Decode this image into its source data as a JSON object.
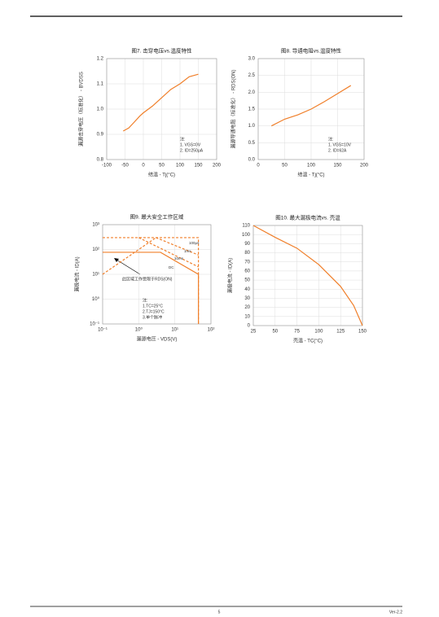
{
  "chart_data": [
    {
      "type": "line",
      "title": "图7. 击穿电压vs.温度特性",
      "xlabel": "结温 - Tj(°C)",
      "ylabel": "漏源击穿电压（标准化） - BVDSS",
      "xlim": [
        -100,
        200
      ],
      "xticks": [
        -100,
        -50,
        0,
        50,
        100,
        150,
        200
      ],
      "ylim": [
        0.8,
        1.2
      ],
      "yticks": [
        0.8,
        0.9,
        {
          "value": 1,
          "label": "1.0"
        },
        1.1,
        1.2
      ],
      "grid": true,
      "series": [
        {
          "color": "#f07f2a",
          "x": [
            -55,
            -40,
            -25,
            -10,
            0,
            25,
            50,
            75,
            100,
            125,
            150
          ],
          "values": [
            0.913,
            0.925,
            0.948,
            0.972,
            0.985,
            1.012,
            1.045,
            1.078,
            1.1,
            1.128,
            1.138
          ]
        }
      ],
      "annotations": [
        "注:",
        "1. VGS=0V",
        "2. ID=250μA"
      ]
    },
    {
      "type": "line",
      "title": "图8. 导通电阻vs.温度特性",
      "xlabel": "结温 - Tj(°C)",
      "ylabel": "漏源导通电阻（标准化） - RDS(ON)",
      "xlim": [
        0,
        200
      ],
      "xticks": [
        0,
        50,
        100,
        150,
        200
      ],
      "ylim": [
        0,
        3
      ],
      "yticks": [
        {
          "value": 0,
          "label": "0.0"
        },
        0.5,
        {
          "value": 1,
          "label": "1.0"
        },
        1.5,
        {
          "value": 2,
          "label": "2.0"
        },
        2.5,
        {
          "value": 3,
          "label": "3.0"
        }
      ],
      "grid": true,
      "series": [
        {
          "color": "#f07f2a",
          "x": [
            25,
            50,
            75,
            100,
            125,
            150,
            175
          ],
          "values": [
            1.0,
            1.2,
            1.33,
            1.5,
            1.72,
            1.96,
            2.2
          ]
        }
      ],
      "annotations": [
        "注:",
        "1. VGS=10V",
        "2. ID=62A"
      ]
    },
    {
      "type": "line",
      "title": "图9. 最大安全工作区域",
      "xlabel": "漏源电压 - VDS(V)",
      "ylabel": "漏极电流 - ID(A)",
      "x_log_scale": true,
      "y_log_scale": true,
      "xlim": [
        0.1,
        100
      ],
      "xticks": [
        {
          "value": 0.1,
          "label": "10⁻¹"
        },
        {
          "value": 1,
          "label": "10⁰"
        },
        {
          "value": 10,
          "label": "10¹"
        },
        {
          "value": 100,
          "label": "10²"
        }
      ],
      "ylim": [
        0.1,
        1000
      ],
      "yticks": [
        {
          "value": 0.1,
          "label": "10⁻¹"
        },
        {
          "value": 1,
          "label": "10⁰"
        },
        {
          "value": 10,
          "label": "10¹"
        },
        {
          "value": 100,
          "label": "10²"
        },
        {
          "value": 1000,
          "label": "10³"
        }
      ],
      "grid": true,
      "series": [
        {
          "color": "#f07f2a",
          "dashed": true,
          "x": [
            0.1,
            3
          ],
          "values": [
            10,
            300
          ]
        },
        {
          "name": "100μs",
          "color": "#f07f2a",
          "dashed": true,
          "x": [
            0.1,
            45,
            45
          ],
          "values": [
            300,
            300,
            0.1
          ]
        },
        {
          "name": "1ms",
          "color": "#f07f2a",
          "dashed": true,
          "x": [
            3,
            45
          ],
          "values": [
            300,
            60
          ]
        },
        {
          "name": "10ms",
          "color": "#f07f2a",
          "dashed": true,
          "x": [
            1,
            45
          ],
          "values": [
            300,
            20
          ]
        },
        {
          "name": "DC",
          "color": "#f07f2a",
          "x": [
            0.1,
            4,
            45,
            45
          ],
          "values": [
            77,
            77,
            10,
            0.1
          ]
        }
      ],
      "annotations": [
        "此区域工作受限于RDS(ON)",
        "注:",
        "1.TC=25°C",
        "2.TJ=150°C",
        "3.单个脉冲"
      ]
    },
    {
      "type": "line",
      "title": "图10. 最大漏极电流vs. 壳温",
      "xlabel": "壳温 - TC(°C)",
      "ylabel": "漏极电流 - ID(A)",
      "xlim": [
        25,
        150
      ],
      "xticks": [
        25,
        50,
        75,
        100,
        125,
        150
      ],
      "ylim": [
        0,
        110
      ],
      "yticks": [
        0,
        10,
        20,
        30,
        40,
        50,
        60,
        70,
        80,
        90,
        100,
        110
      ],
      "grid": true,
      "series": [
        {
          "color": "#f07f2a",
          "x": [
            25,
            50,
            75,
            100,
            125,
            140,
            150
          ],
          "values": [
            110,
            97,
            85,
            67,
            43,
            22,
            0
          ]
        }
      ]
    }
  ],
  "footer": {
    "page": "5",
    "version": "Ver-2.2"
  }
}
